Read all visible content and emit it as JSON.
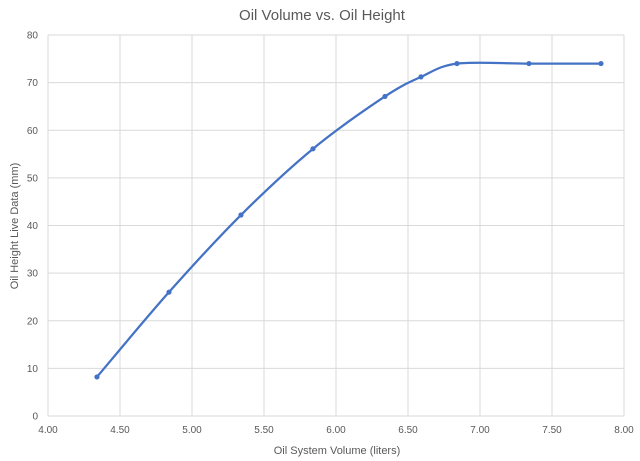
{
  "chart_data": {
    "type": "scatter",
    "title": "Oil Volume vs. Oil Height",
    "xlabel": "Oil System Volume (liters)",
    "ylabel": "Oil Height Live Data (mm)",
    "xlim": [
      4.0,
      8.0
    ],
    "ylim": [
      0,
      80
    ],
    "x_ticks": [
      "4.00",
      "4.50",
      "5.00",
      "5.50",
      "6.00",
      "6.50",
      "7.00",
      "7.50",
      "8.00"
    ],
    "y_ticks": [
      "0",
      "10",
      "20",
      "30",
      "40",
      "50",
      "60",
      "70",
      "80"
    ],
    "grid": true,
    "legend": "none",
    "series": [
      {
        "color": "#4472c4",
        "marker": "circle",
        "line": "smooth",
        "points": [
          {
            "x": 4.34,
            "y": 8.2
          },
          {
            "x": 4.84,
            "y": 26.0
          },
          {
            "x": 5.34,
            "y": 42.2
          },
          {
            "x": 5.84,
            "y": 56.1
          },
          {
            "x": 6.34,
            "y": 67.1
          },
          {
            "x": 6.59,
            "y": 71.2
          },
          {
            "x": 6.84,
            "y": 74.0
          },
          {
            "x": 7.34,
            "y": 74.0
          },
          {
            "x": 7.84,
            "y": 74.0
          }
        ]
      }
    ]
  }
}
